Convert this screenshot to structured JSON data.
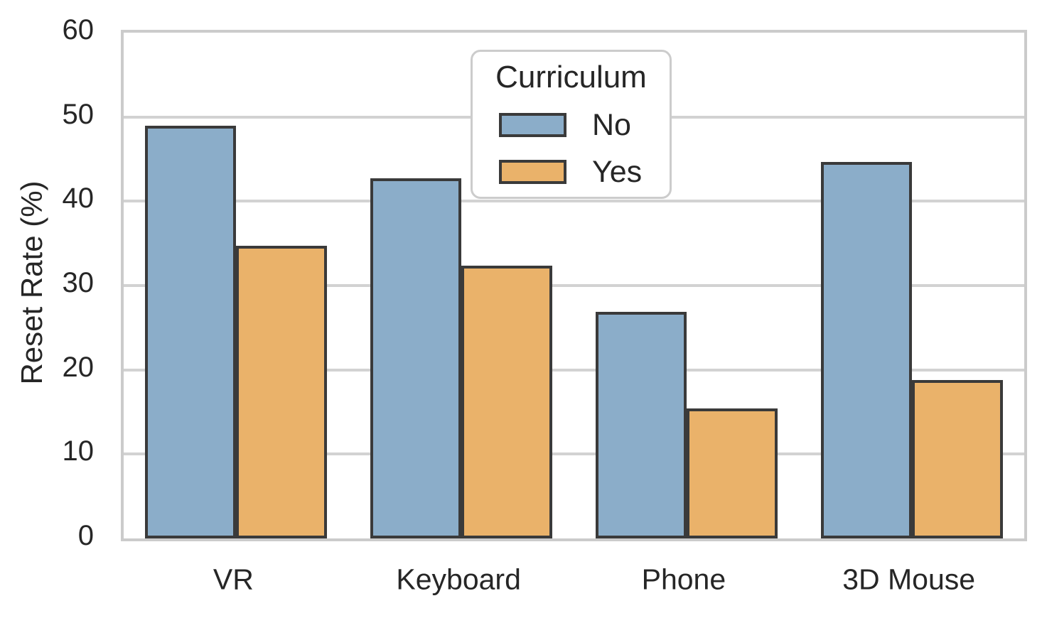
{
  "chart_data": {
    "type": "bar",
    "title": "",
    "categories": [
      "VR",
      "Keyboard",
      "Phone",
      "3D Mouse"
    ],
    "series": [
      {
        "name": "No",
        "color": "#8badc9",
        "values": [
          49.0,
          42.7,
          26.9,
          44.7
        ]
      },
      {
        "name": "Yes",
        "color": "#eab26a",
        "values": [
          34.7,
          32.4,
          15.4,
          18.8
        ]
      }
    ],
    "xlabel": "",
    "ylabel": "Reset Rate (%)",
    "ylim": [
      0,
      60
    ],
    "yticks": [
      0,
      10,
      20,
      30,
      40,
      50,
      60
    ],
    "legend": {
      "title": "Curriculum",
      "entries": [
        "No",
        "Yes"
      ],
      "position": "upper center"
    },
    "grid": "horizontal",
    "colors": {
      "bar_edge": "#3a3a3a",
      "gridline": "#d2d2d2",
      "spine": "#cbcbcb",
      "text": "#262626",
      "background": "#ffffff"
    }
  }
}
